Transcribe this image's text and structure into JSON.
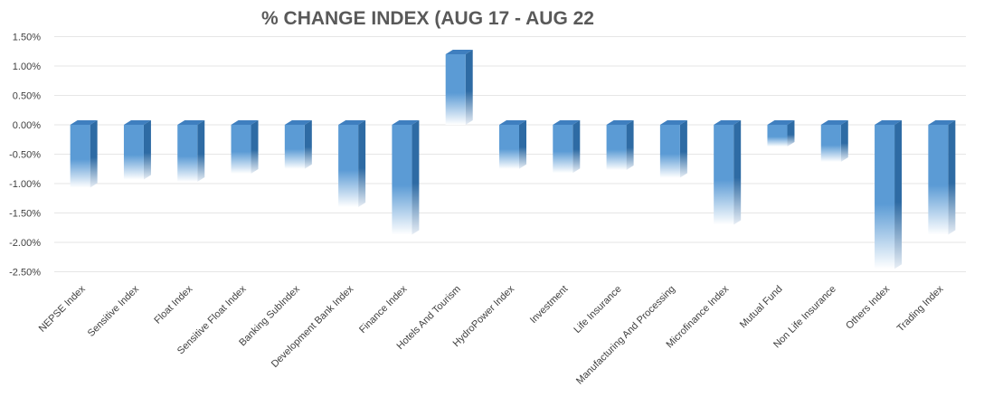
{
  "chart_data": {
    "type": "bar",
    "title": "% CHANGE INDEX (AUG 17 - AUG 22",
    "xlabel": "",
    "ylabel": "",
    "ylim": [
      -2.5,
      1.5
    ],
    "yticks": [
      "1.50%",
      "1.00%",
      "0.50%",
      "0.00%",
      "-0.50%",
      "-1.00%",
      "-1.50%",
      "-2.00%",
      "-2.50%"
    ],
    "grid": true,
    "legend": "none",
    "colors": {
      "bar_front": "#5b9bd5",
      "bar_side": "#2e6ba4",
      "bar_top": "#3f7fbf"
    },
    "categories": [
      "NEPSE Index",
      "Sensitive Index",
      "Float Index",
      "Sensitive Float Index",
      "Banking SubIndex",
      "Development Bank Index",
      "Finance Index",
      "Hotels And Tourism",
      "HydroPower Index",
      "Investment",
      "Life Insurance",
      "Manufacturing And Processing",
      "Microfinance Index",
      "Mutual Fund",
      "Non Life Insurance",
      "Others Index",
      "Trading Index"
    ],
    "values": [
      -1.07,
      -0.93,
      -0.97,
      -0.83,
      -0.75,
      -1.4,
      -1.87,
      1.2,
      -0.75,
      -0.82,
      -0.77,
      -0.9,
      -1.7,
      -0.37,
      -0.63,
      -2.45,
      -1.87
    ]
  }
}
